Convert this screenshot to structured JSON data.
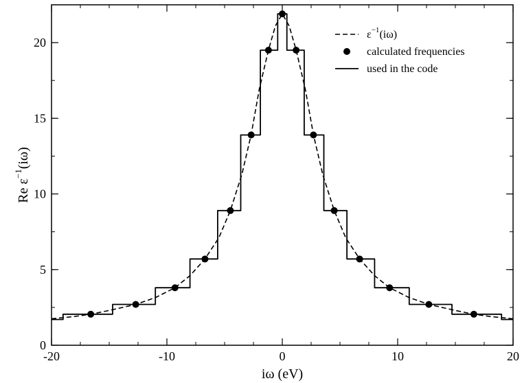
{
  "chart_data": {
    "type": "line",
    "title": "",
    "xlabel": "iω  (eV)",
    "ylabel_base": "Re ε",
    "ylabel_sup": "−1",
    "ylabel_tail": "(iω)",
    "xlim": [
      -20,
      20
    ],
    "ylim": [
      0,
      22.5
    ],
    "x_ticks": [
      -20,
      -10,
      0,
      10,
      20
    ],
    "y_ticks": [
      0,
      5,
      10,
      15,
      20
    ],
    "x_tick_labels": [
      "-20",
      "-10",
      "0",
      "10",
      "20"
    ],
    "y_tick_labels": [
      "0",
      "5",
      "10",
      "15",
      "20"
    ],
    "legend_position": "top-right",
    "series": [
      {
        "name": "ε−1(iω)",
        "legend_base": "ε",
        "legend_sup": "−1",
        "legend_tail": "(iω)",
        "style": "dashed",
        "x": [
          -20,
          -18,
          -16.6,
          -15,
          -12.7,
          -11,
          -9.3,
          -8,
          -6.7,
          -5.5,
          -4.5,
          -3.5,
          -2.7,
          -2,
          -1.2,
          -0.6,
          0,
          0.6,
          1.2,
          2,
          2.7,
          3.5,
          4.5,
          5.5,
          6.7,
          8,
          9.3,
          11,
          12.7,
          15,
          16.6,
          18,
          20
        ],
        "y": [
          1.75,
          1.9,
          2.05,
          2.3,
          2.7,
          3.15,
          3.8,
          4.6,
          5.7,
          7.1,
          8.9,
          11.3,
          13.9,
          16.9,
          19.5,
          21.1,
          21.9,
          21.1,
          19.5,
          16.9,
          13.9,
          11.3,
          8.9,
          7.1,
          5.7,
          4.6,
          3.8,
          3.15,
          2.7,
          2.3,
          2.05,
          1.9,
          1.75
        ]
      },
      {
        "name": "calculated frequencies",
        "style": "markers",
        "x": [
          -16.6,
          -12.7,
          -9.3,
          -6.7,
          -4.5,
          -2.7,
          -1.2,
          0,
          1.2,
          2.7,
          4.5,
          6.7,
          9.3,
          12.7,
          16.6
        ],
        "y": [
          2.05,
          2.7,
          3.8,
          5.7,
          8.9,
          13.9,
          19.5,
          21.9,
          19.5,
          13.9,
          8.9,
          5.7,
          3.8,
          2.7,
          2.05
        ]
      },
      {
        "name": "used in the code",
        "style": "step",
        "x": [
          -20,
          -19,
          -19,
          -14.7,
          -14.7,
          -11,
          -11,
          -8,
          -8,
          -5.6,
          -5.6,
          -3.6,
          -3.6,
          -1.9,
          -1.9,
          -0.4,
          -0.4,
          0.4,
          0.4,
          1.9,
          1.9,
          3.6,
          3.6,
          5.6,
          5.6,
          8,
          8,
          11,
          11,
          14.7,
          14.7,
          19,
          19,
          20
        ],
        "y": [
          1.7,
          1.7,
          2.05,
          2.05,
          2.7,
          2.7,
          3.8,
          3.8,
          5.7,
          5.7,
          8.9,
          8.9,
          13.9,
          13.9,
          19.5,
          19.5,
          21.9,
          21.9,
          19.5,
          19.5,
          13.9,
          13.9,
          8.9,
          8.9,
          5.7,
          5.7,
          3.8,
          3.8,
          2.7,
          2.7,
          2.05,
          2.05,
          1.7,
          1.7
        ]
      }
    ]
  }
}
